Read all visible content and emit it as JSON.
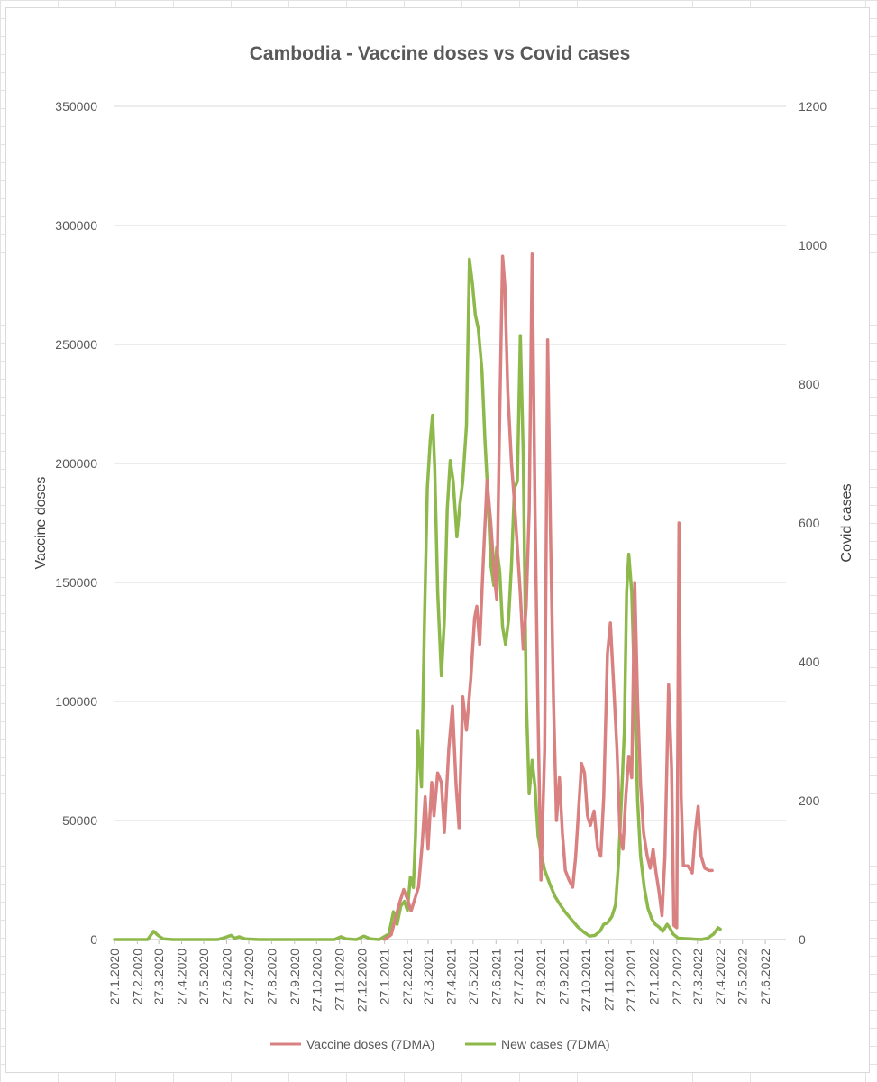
{
  "chart_data": {
    "type": "line",
    "title": "Cambodia - Vaccine doses vs Covid cases",
    "ylabel": "Vaccine doses",
    "y2label": "Covid cases",
    "ylim": [
      0,
      350000
    ],
    "y2lim": [
      0,
      1200
    ],
    "yticks": [
      "0",
      "50000",
      "100000",
      "150000",
      "200000",
      "250000",
      "300000",
      "350000"
    ],
    "y2ticks": [
      "0",
      "200",
      "400",
      "600",
      "800",
      "1000",
      "1200"
    ],
    "xlim": [
      "2020-01-27",
      "2022-07-25"
    ],
    "xticks": [
      "27.1.2020",
      "27.2.2020",
      "27.3.2020",
      "27.4.2020",
      "27.5.2020",
      "27.6.2020",
      "27.7.2020",
      "27.8.2020",
      "27.9.2020",
      "27.10.2020",
      "27.11.2020",
      "27.12.2020",
      "27.1.2021",
      "27.2.2021",
      "27.3.2021",
      "27.4.2021",
      "27.5.2021",
      "27.6.2021",
      "27.7.2021",
      "27.8.2021",
      "27.9.2021",
      "27.10.2021",
      "27.11.2021",
      "27.12.2021",
      "27.1.2022",
      "27.2.2022",
      "27.3.2022",
      "27.4.2022",
      "27.5.2022",
      "27.6.2022"
    ],
    "grid": true,
    "legend": "bottom",
    "series": [
      {
        "name": "Vaccine doses (7DMA)",
        "axis": "left",
        "color": "#d98080",
        "points": [
          [
            "2021-01-27",
            0
          ],
          [
            "2021-02-05",
            2000
          ],
          [
            "2021-02-10",
            8000
          ],
          [
            "2021-02-16",
            15000
          ],
          [
            "2021-02-22",
            21000
          ],
          [
            "2021-02-27",
            17000
          ],
          [
            "2021-03-04",
            12000
          ],
          [
            "2021-03-10",
            18000
          ],
          [
            "2021-03-14",
            22000
          ],
          [
            "2021-03-19",
            40000
          ],
          [
            "2021-03-23",
            60000
          ],
          [
            "2021-03-27",
            38000
          ],
          [
            "2021-04-01",
            66000
          ],
          [
            "2021-04-04",
            52000
          ],
          [
            "2021-04-09",
            70000
          ],
          [
            "2021-04-14",
            66000
          ],
          [
            "2021-04-18",
            45000
          ],
          [
            "2021-04-24",
            80000
          ],
          [
            "2021-04-29",
            98000
          ],
          [
            "2021-05-04",
            65000
          ],
          [
            "2021-05-08",
            47000
          ],
          [
            "2021-05-13",
            102000
          ],
          [
            "2021-05-18",
            88000
          ],
          [
            "2021-05-24",
            110000
          ],
          [
            "2021-05-29",
            135000
          ],
          [
            "2021-06-01",
            140000
          ],
          [
            "2021-06-05",
            124000
          ],
          [
            "2021-06-10",
            160000
          ],
          [
            "2021-06-15",
            193000
          ],
          [
            "2021-06-20",
            175000
          ],
          [
            "2021-06-25",
            152000
          ],
          [
            "2021-06-28",
            143000
          ],
          [
            "2021-07-02",
            220000
          ],
          [
            "2021-07-06",
            287000
          ],
          [
            "2021-07-09",
            275000
          ],
          [
            "2021-07-13",
            230000
          ],
          [
            "2021-07-18",
            200000
          ],
          [
            "2021-07-22",
            184000
          ],
          [
            "2021-07-27",
            160000
          ],
          [
            "2021-07-30",
            145000
          ],
          [
            "2021-08-03",
            122000
          ],
          [
            "2021-08-07",
            140000
          ],
          [
            "2021-08-11",
            180000
          ],
          [
            "2021-08-15",
            288000
          ],
          [
            "2021-08-19",
            180000
          ],
          [
            "2021-08-23",
            95000
          ],
          [
            "2021-08-27",
            25000
          ],
          [
            "2021-09-01",
            80000
          ],
          [
            "2021-09-05",
            252000
          ],
          [
            "2021-09-09",
            170000
          ],
          [
            "2021-09-13",
            100000
          ],
          [
            "2021-09-17",
            50000
          ],
          [
            "2021-09-21",
            68000
          ],
          [
            "2021-09-25",
            45000
          ],
          [
            "2021-09-29",
            29000
          ],
          [
            "2021-10-04",
            25000
          ],
          [
            "2021-10-09",
            22000
          ],
          [
            "2021-10-13",
            35000
          ],
          [
            "2021-10-17",
            55000
          ],
          [
            "2021-10-21",
            74000
          ],
          [
            "2021-10-25",
            70000
          ],
          [
            "2021-10-29",
            52000
          ],
          [
            "2021-11-02",
            48000
          ],
          [
            "2021-11-07",
            54000
          ],
          [
            "2021-11-12",
            38000
          ],
          [
            "2021-11-16",
            35000
          ],
          [
            "2021-11-20",
            60000
          ],
          [
            "2021-11-25",
            120000
          ],
          [
            "2021-11-29",
            133000
          ],
          [
            "2021-12-03",
            110000
          ],
          [
            "2021-12-08",
            80000
          ],
          [
            "2021-12-12",
            45000
          ],
          [
            "2021-12-16",
            38000
          ],
          [
            "2021-12-20",
            60000
          ],
          [
            "2021-12-24",
            77000
          ],
          [
            "2021-12-28",
            68000
          ],
          [
            "2022-01-01",
            150000
          ],
          [
            "2022-01-05",
            100000
          ],
          [
            "2022-01-09",
            65000
          ],
          [
            "2022-01-13",
            45000
          ],
          [
            "2022-01-18",
            35000
          ],
          [
            "2022-01-22",
            30000
          ],
          [
            "2022-01-26",
            38000
          ],
          [
            "2022-01-30",
            28000
          ],
          [
            "2022-02-03",
            20000
          ],
          [
            "2022-02-07",
            10000
          ],
          [
            "2022-02-11",
            35000
          ],
          [
            "2022-02-16",
            107000
          ],
          [
            "2022-02-20",
            72000
          ],
          [
            "2022-02-23",
            6000
          ],
          [
            "2022-02-27",
            5000
          ],
          [
            "2022-03-02",
            175000
          ],
          [
            "2022-03-05",
            60000
          ],
          [
            "2022-03-08",
            31000
          ],
          [
            "2022-03-14",
            31000
          ],
          [
            "2022-03-20",
            28000
          ],
          [
            "2022-03-24",
            45000
          ],
          [
            "2022-03-28",
            56000
          ],
          [
            "2022-04-01",
            35000
          ],
          [
            "2022-04-06",
            30000
          ],
          [
            "2022-04-12",
            29000
          ],
          [
            "2022-04-16",
            29000
          ]
        ]
      },
      {
        "name": "New cases (7DMA)",
        "axis": "right",
        "color": "#8db84a",
        "points": [
          [
            "2020-01-27",
            0
          ],
          [
            "2020-03-12",
            0
          ],
          [
            "2020-03-20",
            12
          ],
          [
            "2020-03-26",
            6
          ],
          [
            "2020-04-02",
            1
          ],
          [
            "2020-04-15",
            0
          ],
          [
            "2020-06-15",
            0
          ],
          [
            "2020-06-25",
            3
          ],
          [
            "2020-07-03",
            6
          ],
          [
            "2020-07-08",
            2
          ],
          [
            "2020-07-14",
            4
          ],
          [
            "2020-07-22",
            1
          ],
          [
            "2020-08-10",
            0
          ],
          [
            "2020-11-20",
            0
          ],
          [
            "2020-11-29",
            4
          ],
          [
            "2020-12-06",
            1
          ],
          [
            "2020-12-20",
            0
          ],
          [
            "2020-12-30",
            5
          ],
          [
            "2021-01-08",
            1
          ],
          [
            "2021-01-20",
            0
          ],
          [
            "2021-02-02",
            8
          ],
          [
            "2021-02-08",
            40
          ],
          [
            "2021-02-13",
            22
          ],
          [
            "2021-02-18",
            48
          ],
          [
            "2021-02-23",
            55
          ],
          [
            "2021-02-27",
            42
          ],
          [
            "2021-03-03",
            90
          ],
          [
            "2021-03-07",
            75
          ],
          [
            "2021-03-10",
            150
          ],
          [
            "2021-03-13",
            300
          ],
          [
            "2021-03-18",
            220
          ],
          [
            "2021-03-22",
            450
          ],
          [
            "2021-03-26",
            650
          ],
          [
            "2021-03-30",
            720
          ],
          [
            "2021-04-02",
            755
          ],
          [
            "2021-04-05",
            680
          ],
          [
            "2021-04-09",
            500
          ],
          [
            "2021-04-14",
            380
          ],
          [
            "2021-04-18",
            460
          ],
          [
            "2021-04-22",
            620
          ],
          [
            "2021-04-26",
            690
          ],
          [
            "2021-04-30",
            660
          ],
          [
            "2021-05-05",
            580
          ],
          [
            "2021-05-09",
            625
          ],
          [
            "2021-05-13",
            660
          ],
          [
            "2021-05-18",
            740
          ],
          [
            "2021-05-22",
            980
          ],
          [
            "2021-05-26",
            945
          ],
          [
            "2021-05-30",
            900
          ],
          [
            "2021-06-03",
            880
          ],
          [
            "2021-06-08",
            820
          ],
          [
            "2021-06-12",
            720
          ],
          [
            "2021-06-16",
            640
          ],
          [
            "2021-06-20",
            540
          ],
          [
            "2021-06-24",
            510
          ],
          [
            "2021-06-28",
            565
          ],
          [
            "2021-07-02",
            530
          ],
          [
            "2021-07-06",
            450
          ],
          [
            "2021-07-10",
            425
          ],
          [
            "2021-07-14",
            460
          ],
          [
            "2021-07-18",
            540
          ],
          [
            "2021-07-22",
            650
          ],
          [
            "2021-07-26",
            660
          ],
          [
            "2021-07-30",
            870
          ],
          [
            "2021-08-03",
            700
          ],
          [
            "2021-08-07",
            350
          ],
          [
            "2021-08-11",
            210
          ],
          [
            "2021-08-15",
            258
          ],
          [
            "2021-08-19",
            220
          ],
          [
            "2021-08-23",
            150
          ],
          [
            "2021-08-27",
            125
          ],
          [
            "2021-09-01",
            100
          ],
          [
            "2021-09-08",
            80
          ],
          [
            "2021-09-15",
            62
          ],
          [
            "2021-09-22",
            50
          ],
          [
            "2021-09-30",
            38
          ],
          [
            "2021-10-08",
            28
          ],
          [
            "2021-10-16",
            18
          ],
          [
            "2021-10-25",
            10
          ],
          [
            "2021-11-01",
            5
          ],
          [
            "2021-11-08",
            6
          ],
          [
            "2021-11-15",
            12
          ],
          [
            "2021-11-20",
            22
          ],
          [
            "2021-11-25",
            24
          ],
          [
            "2021-12-01",
            33
          ],
          [
            "2021-12-06",
            50
          ],
          [
            "2021-12-10",
            110
          ],
          [
            "2021-12-14",
            200
          ],
          [
            "2021-12-18",
            300
          ],
          [
            "2021-12-21",
            500
          ],
          [
            "2021-12-24",
            555
          ],
          [
            "2021-12-28",
            500
          ],
          [
            "2022-01-01",
            350
          ],
          [
            "2022-01-05",
            200
          ],
          [
            "2022-01-09",
            120
          ],
          [
            "2022-01-14",
            75
          ],
          [
            "2022-01-19",
            45
          ],
          [
            "2022-01-24",
            30
          ],
          [
            "2022-01-29",
            22
          ],
          [
            "2022-02-03",
            18
          ],
          [
            "2022-02-08",
            12
          ],
          [
            "2022-02-14",
            22
          ],
          [
            "2022-02-18",
            16
          ],
          [
            "2022-02-22",
            8
          ],
          [
            "2022-03-01",
            2
          ],
          [
            "2022-04-01",
            0
          ],
          [
            "2022-04-10",
            2
          ],
          [
            "2022-04-18",
            8
          ],
          [
            "2022-04-24",
            17
          ],
          [
            "2022-04-27",
            15
          ]
        ]
      }
    ]
  }
}
